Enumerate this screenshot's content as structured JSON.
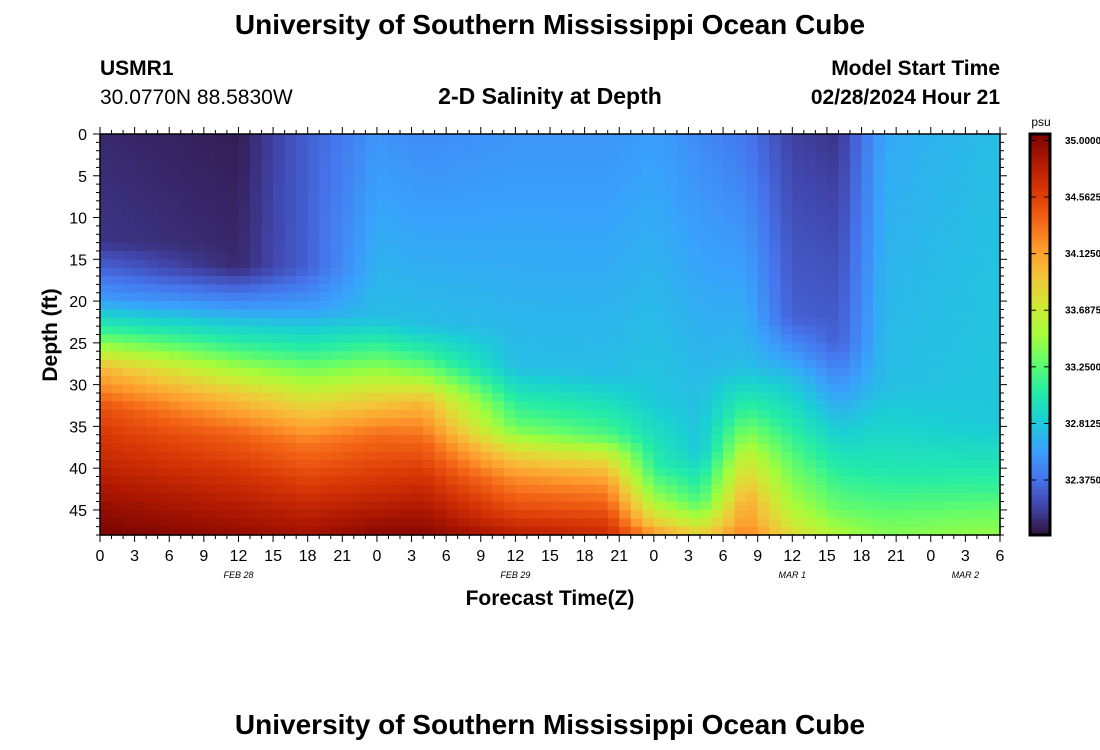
{
  "header": {
    "title": "University of Southern Mississippi Ocean Cube",
    "station_id": "USMR1",
    "station_coords": "30.0770N  88.5830W",
    "plot_title": "2-D Salinity at Depth",
    "model_start_label": "Model Start Time",
    "model_start_value": "02/28/2024 Hour 21"
  },
  "footer": {
    "title": "University of Southern Mississippi Ocean Cube"
  },
  "chart_data": {
    "type": "heatmap",
    "title": "2-D Salinity at Depth",
    "xlabel": "Forecast Time(Z)",
    "ylabel": "Depth (ft)",
    "x_tick_labels": [
      "0",
      "3",
      "6",
      "9",
      "12",
      "15",
      "18",
      "21",
      "0",
      "3",
      "6",
      "9",
      "12",
      "15",
      "18",
      "21",
      "0",
      "3",
      "6",
      "9",
      "12",
      "15",
      "18",
      "21",
      "0",
      "3",
      "6"
    ],
    "x_range_hours_from_feb28_00z": [
      0,
      78
    ],
    "date_labels": [
      {
        "label": "FEB 28",
        "hour": 12
      },
      {
        "label": "FEB 29",
        "hour": 36
      },
      {
        "label": "MAR 1",
        "hour": 60
      },
      {
        "label": "MAR 2",
        "hour": 75
      }
    ],
    "y_ticks": [
      0,
      5,
      10,
      15,
      20,
      25,
      30,
      35,
      40,
      45
    ],
    "ylim": [
      0,
      48
    ],
    "y_inverted": true,
    "colorbar": {
      "unit": "psu",
      "min": 31.95,
      "max": 35.05,
      "tick_labels": [
        "35.0000",
        "34.5625",
        "34.1250",
        "33.6875",
        "33.2500",
        "32.8125",
        "32.3750"
      ],
      "colormap": [
        "#30123b",
        "#4145ab",
        "#4675ed",
        "#39a2fc",
        "#1bcfd4",
        "#24eca6",
        "#61fc6c",
        "#a4fc3b",
        "#d1e834",
        "#f3c63a",
        "#fe9b2d",
        "#f36315",
        "#d93806",
        "#b11901",
        "#7a0402"
      ]
    },
    "cross_section": [
      {
        "hour": 0,
        "depth_profile": [
          [
            0,
            32.05
          ],
          [
            13,
            32.1
          ],
          [
            20,
            32.6
          ],
          [
            24,
            33.2
          ],
          [
            28,
            34.0
          ],
          [
            33,
            34.5
          ],
          [
            40,
            34.75
          ],
          [
            45,
            34.95
          ],
          [
            48,
            35.05
          ]
        ]
      },
      {
        "hour": 12,
        "depth_profile": [
          [
            0,
            32.0
          ],
          [
            16,
            32.05
          ],
          [
            21,
            32.6
          ],
          [
            26,
            33.2
          ],
          [
            31,
            33.9
          ],
          [
            36,
            34.4
          ],
          [
            42,
            34.7
          ],
          [
            48,
            34.95
          ]
        ]
      },
      {
        "hour": 18,
        "depth_profile": [
          [
            0,
            32.3
          ],
          [
            16,
            32.3
          ],
          [
            21,
            32.6
          ],
          [
            27,
            33.2
          ],
          [
            32,
            33.8
          ],
          [
            37,
            34.3
          ],
          [
            44,
            34.7
          ],
          [
            48,
            34.9
          ]
        ]
      },
      {
        "hour": 24,
        "depth_profile": [
          [
            0,
            32.55
          ],
          [
            22,
            32.75
          ],
          [
            27,
            33.3
          ],
          [
            31,
            33.8
          ],
          [
            36,
            34.35
          ],
          [
            43,
            34.7
          ],
          [
            48,
            35.0
          ]
        ]
      },
      {
        "hour": 28,
        "depth_profile": [
          [
            0,
            32.5
          ],
          [
            23,
            32.75
          ],
          [
            28,
            33.3
          ],
          [
            32,
            34.0
          ],
          [
            37,
            34.4
          ],
          [
            43,
            34.75
          ],
          [
            48,
            35.0
          ]
        ]
      },
      {
        "hour": 36,
        "depth_profile": [
          [
            0,
            32.55
          ],
          [
            28,
            32.75
          ],
          [
            35,
            33.3
          ],
          [
            38,
            33.8
          ],
          [
            41,
            34.2
          ],
          [
            46,
            34.6
          ],
          [
            48,
            34.8
          ]
        ]
      },
      {
        "hour": 44,
        "depth_profile": [
          [
            0,
            32.55
          ],
          [
            29,
            32.75
          ],
          [
            36,
            33.2
          ],
          [
            39,
            33.8
          ],
          [
            42,
            34.2
          ],
          [
            46,
            34.55
          ],
          [
            48,
            34.7
          ]
        ]
      },
      {
        "hour": 48,
        "depth_profile": [
          [
            0,
            32.6
          ],
          [
            32,
            32.8
          ],
          [
            40,
            33.1
          ],
          [
            43,
            33.4
          ],
          [
            46,
            33.8
          ],
          [
            48,
            34.2
          ]
        ]
      },
      {
        "hour": 52,
        "depth_profile": [
          [
            0,
            32.5
          ],
          [
            38,
            32.8
          ],
          [
            44,
            33.2
          ],
          [
            47,
            33.7
          ],
          [
            48,
            33.9
          ]
        ]
      },
      {
        "hour": 56,
        "depth_profile": [
          [
            0,
            32.4
          ],
          [
            28,
            32.75
          ],
          [
            34,
            33.2
          ],
          [
            39,
            33.7
          ],
          [
            44,
            34.1
          ],
          [
            47,
            34.2
          ],
          [
            48,
            34.3
          ]
        ]
      },
      {
        "hour": 60,
        "depth_profile": [
          [
            0,
            32.15
          ],
          [
            22,
            32.3
          ],
          [
            30,
            32.8
          ],
          [
            38,
            33.2
          ],
          [
            44,
            33.5
          ],
          [
            48,
            33.8
          ]
        ]
      },
      {
        "hour": 64,
        "depth_profile": [
          [
            0,
            32.1
          ],
          [
            25,
            32.3
          ],
          [
            35,
            32.8
          ],
          [
            45,
            33.3
          ],
          [
            48,
            33.55
          ]
        ]
      },
      {
        "hour": 68,
        "depth_profile": [
          [
            0,
            32.65
          ],
          [
            30,
            32.75
          ],
          [
            40,
            33.0
          ],
          [
            46,
            33.3
          ],
          [
            48,
            33.4
          ]
        ]
      },
      {
        "hour": 78,
        "depth_profile": [
          [
            0,
            32.75
          ],
          [
            35,
            32.8
          ],
          [
            42,
            33.1
          ],
          [
            46,
            33.35
          ],
          [
            48,
            33.45
          ]
        ]
      }
    ]
  }
}
